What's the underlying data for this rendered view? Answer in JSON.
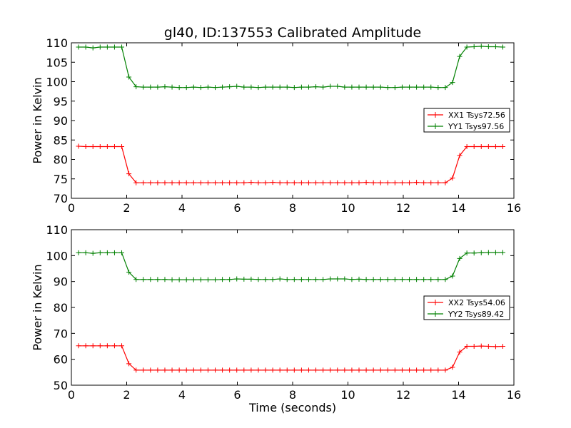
{
  "chart_data": [
    {
      "type": "line",
      "title": "gl40, ID:137553 Calibrated Amplitude",
      "xlabel": "",
      "ylabel": "Power in Kelvin",
      "xlim": [
        0,
        16
      ],
      "ylim": [
        70,
        110
      ],
      "xticks": [
        0,
        2,
        4,
        6,
        8,
        10,
        12,
        14,
        16
      ],
      "yticks": [
        70,
        75,
        80,
        85,
        90,
        95,
        100,
        105,
        110
      ],
      "grid": false,
      "legend": "center-right",
      "marker": "+",
      "x": [
        0.26,
        0.52,
        0.78,
        1.04,
        1.3,
        1.56,
        1.82,
        2.08,
        2.34,
        2.6,
        2.86,
        3.12,
        3.38,
        3.64,
        3.9,
        4.16,
        4.42,
        4.68,
        4.94,
        5.2,
        5.46,
        5.72,
        5.98,
        6.24,
        6.5,
        6.76,
        7.02,
        7.28,
        7.54,
        7.8,
        8.06,
        8.32,
        8.58,
        8.84,
        9.1,
        9.36,
        9.62,
        9.88,
        10.14,
        10.4,
        10.66,
        10.92,
        11.18,
        11.44,
        11.7,
        11.96,
        12.22,
        12.48,
        12.74,
        13.0,
        13.26,
        13.52,
        13.78,
        14.04,
        14.3,
        14.56,
        14.82,
        15.08,
        15.34,
        15.6
      ],
      "series": [
        {
          "name": "XX1 Tsys72.56",
          "color": "#ff0000",
          "values": [
            83.4,
            83.3,
            83.3,
            83.3,
            83.3,
            83.3,
            83.3,
            76.3,
            74.0,
            74.0,
            74.0,
            74.0,
            74.0,
            74.0,
            74.0,
            74.0,
            74.0,
            74.0,
            74.0,
            74.0,
            74.0,
            74.0,
            74.0,
            74.0,
            74.1,
            74.0,
            74.0,
            74.1,
            74.0,
            74.0,
            74.0,
            74.0,
            74.0,
            74.0,
            74.0,
            74.0,
            74.0,
            74.0,
            74.0,
            74.0,
            74.1,
            74.0,
            74.0,
            74.0,
            74.0,
            74.0,
            74.0,
            74.1,
            74.0,
            74.0,
            74.0,
            74.0,
            75.2,
            81.0,
            83.3,
            83.3,
            83.3,
            83.3,
            83.3,
            83.3
          ]
        },
        {
          "name": "YY1 Tsys97.56",
          "color": "#008000",
          "values": [
            108.9,
            108.9,
            108.7,
            108.9,
            108.9,
            108.9,
            108.9,
            101.2,
            98.7,
            98.6,
            98.6,
            98.6,
            98.7,
            98.6,
            98.5,
            98.5,
            98.6,
            98.5,
            98.6,
            98.5,
            98.6,
            98.7,
            98.8,
            98.6,
            98.6,
            98.5,
            98.6,
            98.6,
            98.6,
            98.6,
            98.5,
            98.6,
            98.6,
            98.7,
            98.6,
            98.8,
            98.8,
            98.6,
            98.6,
            98.6,
            98.6,
            98.6,
            98.6,
            98.5,
            98.5,
            98.6,
            98.6,
            98.6,
            98.6,
            98.6,
            98.5,
            98.5,
            99.8,
            106.5,
            108.9,
            109.0,
            109.1,
            109.0,
            109.0,
            108.9
          ]
        }
      ]
    },
    {
      "type": "line",
      "title": "",
      "xlabel": "Time (seconds)",
      "ylabel": "Power in Kelvin",
      "xlim": [
        0,
        16
      ],
      "ylim": [
        50,
        110
      ],
      "xticks": [
        0,
        2,
        4,
        6,
        8,
        10,
        12,
        14,
        16
      ],
      "yticks": [
        50,
        60,
        70,
        80,
        90,
        100,
        110
      ],
      "grid": false,
      "legend": "center-right",
      "marker": "+",
      "x": [
        0.26,
        0.52,
        0.78,
        1.04,
        1.3,
        1.56,
        1.82,
        2.08,
        2.34,
        2.6,
        2.86,
        3.12,
        3.38,
        3.64,
        3.9,
        4.16,
        4.42,
        4.68,
        4.94,
        5.2,
        5.46,
        5.72,
        5.98,
        6.24,
        6.5,
        6.76,
        7.02,
        7.28,
        7.54,
        7.8,
        8.06,
        8.32,
        8.58,
        8.84,
        9.1,
        9.36,
        9.62,
        9.88,
        10.14,
        10.4,
        10.66,
        10.92,
        11.18,
        11.44,
        11.7,
        11.96,
        12.22,
        12.48,
        12.74,
        13.0,
        13.26,
        13.52,
        13.78,
        14.04,
        14.3,
        14.56,
        14.82,
        15.08,
        15.34,
        15.6
      ],
      "series": [
        {
          "name": "XX2 Tsys54.06",
          "color": "#ff0000",
          "values": [
            65.2,
            65.2,
            65.2,
            65.2,
            65.2,
            65.2,
            65.2,
            58.3,
            55.8,
            55.8,
            55.8,
            55.8,
            55.8,
            55.8,
            55.8,
            55.8,
            55.8,
            55.8,
            55.8,
            55.8,
            55.8,
            55.8,
            55.8,
            55.8,
            55.8,
            55.8,
            55.8,
            55.8,
            55.8,
            55.8,
            55.8,
            55.8,
            55.8,
            55.8,
            55.8,
            55.8,
            55.8,
            55.8,
            55.8,
            55.8,
            55.8,
            55.8,
            55.8,
            55.8,
            55.8,
            55.8,
            55.8,
            55.8,
            55.8,
            55.8,
            55.8,
            55.8,
            56.9,
            62.8,
            65.0,
            65.0,
            65.1,
            65.0,
            64.9,
            65.0
          ]
        },
        {
          "name": "YY2 Tsys89.42",
          "color": "#008000",
          "values": [
            101.1,
            101.1,
            100.9,
            101.1,
            101.1,
            101.1,
            101.1,
            93.6,
            90.8,
            90.8,
            90.8,
            90.8,
            90.8,
            90.7,
            90.7,
            90.7,
            90.7,
            90.7,
            90.7,
            90.7,
            90.8,
            90.8,
            91.0,
            90.9,
            90.9,
            90.8,
            90.8,
            90.8,
            91.0,
            90.8,
            90.8,
            90.8,
            90.8,
            90.8,
            90.8,
            91.0,
            91.0,
            91.0,
            90.8,
            90.9,
            90.8,
            90.8,
            90.8,
            90.8,
            90.8,
            90.8,
            90.8,
            90.8,
            90.8,
            90.8,
            90.8,
            90.8,
            92.1,
            98.9,
            101.0,
            101.0,
            101.1,
            101.2,
            101.2,
            101.2
          ]
        }
      ]
    }
  ]
}
